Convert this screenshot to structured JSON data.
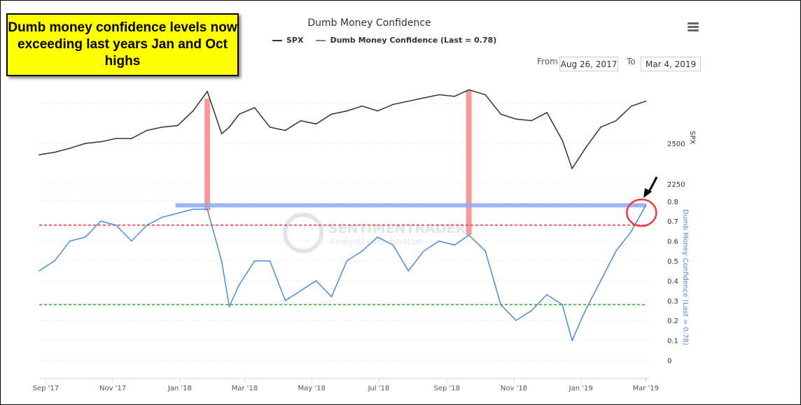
{
  "callout": {
    "text": "Dumb money confidence levels now exceeding last years Jan and Oct highs"
  },
  "range": {
    "from_label": "From",
    "from_value": "Aug 26, 2017",
    "to_label": "To",
    "to_value": "Mar 4, 2019"
  },
  "menu_icon": "hamburger-menu-icon",
  "watermark": {
    "brand": "SENTIMENTRADER",
    "tagline": "Analysis over Emotion"
  },
  "chart_data": {
    "type": "line",
    "title": "Dumb Money Confidence",
    "x_ticks": [
      "Sep '17",
      "Nov '17",
      "Jan '18",
      "Mar '18",
      "May '18",
      "Jul '18",
      "Sep '18",
      "Nov '18",
      "Jan '19",
      "Mar '19"
    ],
    "x_tick_dates": [
      "2017-09-01",
      "2017-11-01",
      "2018-01-01",
      "2018-03-01",
      "2018-05-01",
      "2018-07-01",
      "2018-09-01",
      "2018-11-01",
      "2019-01-01",
      "2019-03-01"
    ],
    "x_range": [
      "2017-08-26",
      "2019-03-04"
    ],
    "dates": [
      "2017-08-26",
      "2017-09-09",
      "2017-09-23",
      "2017-10-07",
      "2017-10-21",
      "2017-11-04",
      "2017-11-18",
      "2017-12-02",
      "2017-12-16",
      "2017-12-30",
      "2018-01-13",
      "2018-01-26",
      "2018-02-08",
      "2018-02-15",
      "2018-02-24",
      "2018-03-10",
      "2018-03-24",
      "2018-04-07",
      "2018-04-21",
      "2018-05-05",
      "2018-05-19",
      "2018-06-02",
      "2018-06-16",
      "2018-06-30",
      "2018-07-14",
      "2018-07-28",
      "2018-08-11",
      "2018-08-25",
      "2018-09-08",
      "2018-09-21",
      "2018-10-06",
      "2018-10-20",
      "2018-11-03",
      "2018-11-17",
      "2018-12-01",
      "2018-12-15",
      "2018-12-24",
      "2019-01-05",
      "2019-01-19",
      "2019-02-02",
      "2019-02-16",
      "2019-03-01"
    ],
    "series": [
      {
        "name": "SPX",
        "axis": "SPX",
        "color": "#333333",
        "values": [
          2430,
          2445,
          2470,
          2500,
          2510,
          2530,
          2530,
          2580,
          2600,
          2610,
          2700,
          2820,
          2560,
          2600,
          2680,
          2720,
          2600,
          2580,
          2640,
          2620,
          2680,
          2700,
          2730,
          2700,
          2740,
          2760,
          2780,
          2800,
          2790,
          2830,
          2800,
          2680,
          2650,
          2640,
          2690,
          2520,
          2345,
          2470,
          2600,
          2640,
          2730,
          2760
        ]
      },
      {
        "name": "Dumb Money Confidence (Last = 0.78)",
        "axis": "Dumb Money Confidence (Last = 0.78)",
        "color": "#4a8be0",
        "values": [
          0.45,
          0.5,
          0.6,
          0.62,
          0.7,
          0.68,
          0.6,
          0.68,
          0.72,
          0.74,
          0.76,
          0.76,
          0.5,
          0.27,
          0.38,
          0.5,
          0.5,
          0.3,
          0.35,
          0.4,
          0.32,
          0.5,
          0.55,
          0.62,
          0.58,
          0.45,
          0.55,
          0.6,
          0.58,
          0.63,
          0.55,
          0.28,
          0.2,
          0.25,
          0.33,
          0.28,
          0.1,
          0.25,
          0.4,
          0.55,
          0.65,
          0.78
        ]
      }
    ],
    "spx_axis": {
      "label": "SPX",
      "ticks": [
        2250,
        2500
      ]
    },
    "dmc_axis": {
      "label": "Dumb Money Confidence (Last = 0.78)",
      "ticks": [
        0,
        0.1,
        0.2,
        0.3,
        0.4,
        0.5,
        0.6,
        0.7,
        0.8
      ],
      "range": [
        0,
        0.8
      ]
    },
    "reference_lines": [
      {
        "value": 0.68,
        "color": "#ee3333",
        "style": "dashed"
      },
      {
        "value": 0.28,
        "color": "#22aa22",
        "style": "dashed"
      },
      {
        "value": 0.78,
        "color": "#8fa8f5",
        "style": "solid",
        "from": "2017-12-28"
      }
    ],
    "highlight_dates": [
      "2018-01-26",
      "2018-09-21"
    ],
    "highlight_color": "#f48a8a",
    "annotation_circle_date": "2019-03-01",
    "grid": true,
    "legend": "top-center"
  }
}
